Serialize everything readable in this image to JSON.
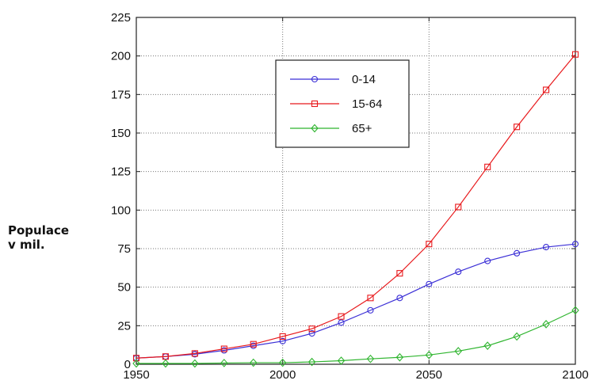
{
  "chart_data": {
    "type": "line",
    "title": "",
    "xlabel": "",
    "ylabel_lines": [
      "Populace",
      "v mil."
    ],
    "xlim": [
      1950,
      2100
    ],
    "ylim": [
      0,
      225
    ],
    "xticks": [
      1950,
      2000,
      2050,
      2100
    ],
    "xtick_labels": [
      "1950",
      "2000",
      "2050",
      "2100"
    ],
    "yticks": [
      0,
      25,
      50,
      75,
      100,
      125,
      150,
      175,
      200,
      225
    ],
    "ytick_labels": [
      "0",
      "25",
      "50",
      "75",
      "100",
      "125",
      "150",
      "175",
      "200",
      "225"
    ],
    "grid": true,
    "legend_position": "top-center",
    "x": [
      1950,
      1960,
      1970,
      1980,
      1990,
      2000,
      2010,
      2020,
      2030,
      2040,
      2050,
      2060,
      2070,
      2080,
      2090,
      2100
    ],
    "series": [
      {
        "name": "0-14",
        "color": "#3b2fd6",
        "marker": "circle",
        "values": [
          4,
          5,
          6.5,
          9,
          12,
          15,
          20,
          27,
          35,
          43,
          52,
          60,
          67,
          72,
          76,
          78
        ]
      },
      {
        "name": "15-64",
        "color": "#e8191c",
        "marker": "square",
        "values": [
          4,
          5,
          7,
          10,
          13,
          18,
          23,
          31,
          43,
          59,
          78,
          102,
          128,
          154,
          178,
          201
        ]
      },
      {
        "name": "65+",
        "color": "#2fb52f",
        "marker": "diamond",
        "values": [
          0.5,
          0.5,
          0.5,
          0.8,
          1,
          1,
          1.5,
          2.3,
          3.5,
          4.5,
          6,
          8.5,
          12,
          18,
          26,
          35
        ]
      }
    ]
  }
}
